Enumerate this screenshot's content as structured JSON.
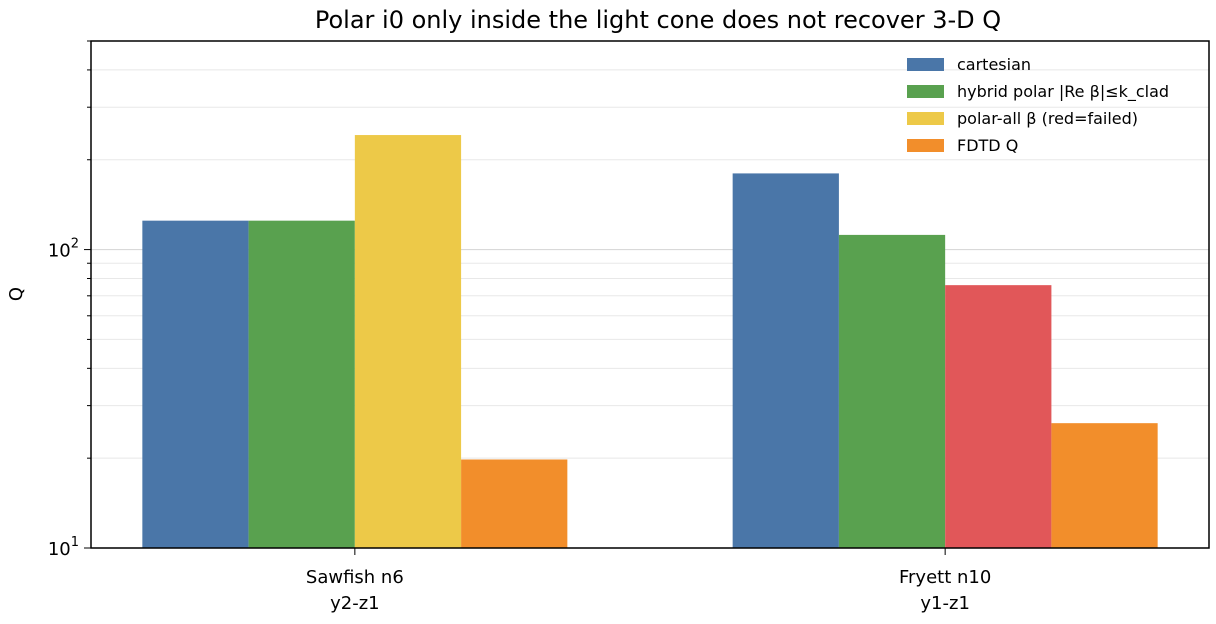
{
  "chart_data": {
    "type": "bar",
    "title": "Polar i0 only inside the light cone does not recover 3-D Q",
    "ylabel": "Q",
    "xlabel": "",
    "yscale": "log",
    "ylim": [
      10,
      500
    ],
    "yticks": [
      {
        "value": 10,
        "base": "10",
        "exp": "1"
      },
      {
        "value": 100,
        "base": "10",
        "exp": "2"
      }
    ],
    "grid": "y-major-and-minor",
    "legend_position": "top-right",
    "categories": [
      {
        "line1": "Sawfish n6",
        "line2": "y2-z1"
      },
      {
        "line1": "Fryett n10",
        "line2": "y1-z1"
      }
    ],
    "series": [
      {
        "name": "cartesian",
        "color": "#4a76a8",
        "values": [
          125,
          180
        ]
      },
      {
        "name": "hybrid polar |Re β|≤k_clad",
        "color": "#59a14f",
        "values": [
          125,
          112
        ]
      },
      {
        "name": "polar-all β (red=failed)",
        "color": "#edc948",
        "values": [
          242,
          76
        ],
        "failed": [
          false,
          true
        ],
        "failed_color": "#e15759"
      },
      {
        "name": "FDTD Q",
        "color": "#f28e2b",
        "values": [
          19.8,
          26.2
        ]
      }
    ]
  }
}
